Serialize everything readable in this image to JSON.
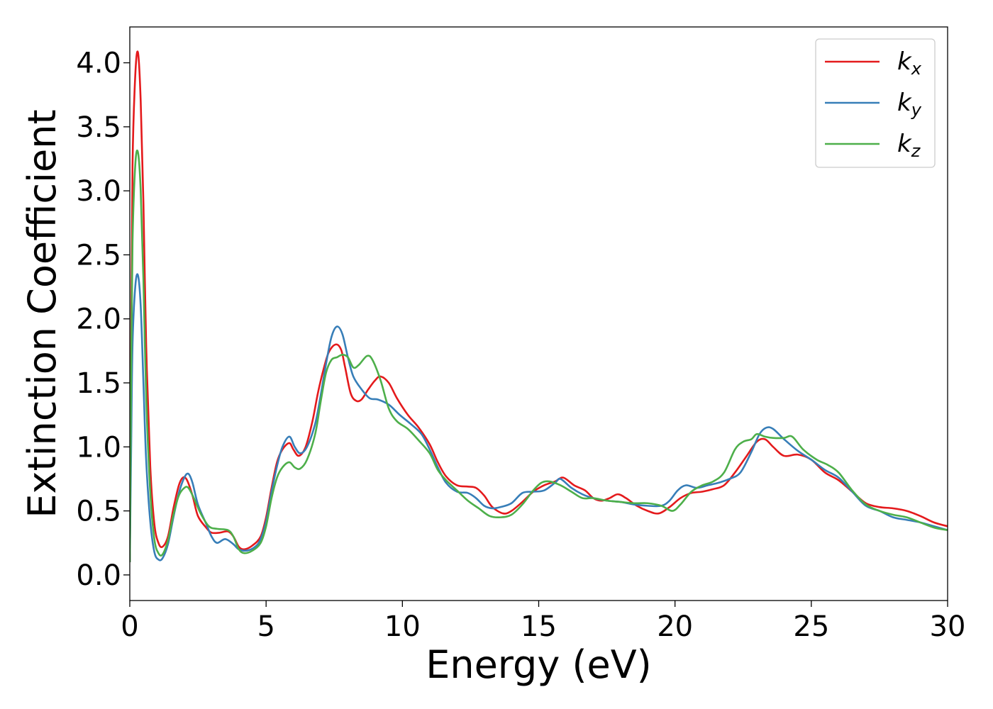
{
  "chart_data": {
    "type": "line",
    "xlabel": "Energy (eV)",
    "ylabel": "Extinction Coefficient",
    "xlim": [
      0,
      30
    ],
    "ylim": [
      -0.2,
      4.28
    ],
    "x_ticks": [
      0,
      5,
      10,
      15,
      20,
      25,
      30
    ],
    "x_tick_labels": [
      "0",
      "5",
      "10",
      "15",
      "20",
      "25",
      "30"
    ],
    "y_ticks": [
      0.0,
      0.5,
      1.0,
      1.5,
      2.0,
      2.5,
      3.0,
      3.5,
      4.0
    ],
    "y_tick_labels": [
      "0.0",
      "0.5",
      "1.0",
      "1.5",
      "2.0",
      "2.5",
      "3.0",
      "3.5",
      "4.0"
    ],
    "grid": false,
    "legend_position": "top-right",
    "series": [
      {
        "name": "k",
        "subscript": "x",
        "color": "#e41a1c",
        "points": [
          [
            0,
            0.1
          ],
          [
            0.05,
            1.8
          ],
          [
            0.1,
            3.2
          ],
          [
            0.2,
            3.9
          ],
          [
            0.3,
            4.08
          ],
          [
            0.4,
            3.7
          ],
          [
            0.5,
            2.9
          ],
          [
            0.6,
            1.8
          ],
          [
            0.75,
            0.85
          ],
          [
            0.9,
            0.4
          ],
          [
            1.05,
            0.25
          ],
          [
            1.2,
            0.22
          ],
          [
            1.4,
            0.3
          ],
          [
            1.6,
            0.52
          ],
          [
            1.8,
            0.7
          ],
          [
            1.95,
            0.76
          ],
          [
            2.1,
            0.74
          ],
          [
            2.3,
            0.62
          ],
          [
            2.5,
            0.46
          ],
          [
            2.8,
            0.37
          ],
          [
            3.0,
            0.33
          ],
          [
            3.3,
            0.33
          ],
          [
            3.6,
            0.34
          ],
          [
            3.8,
            0.3
          ],
          [
            4.0,
            0.22
          ],
          [
            4.2,
            0.2
          ],
          [
            4.5,
            0.23
          ],
          [
            4.8,
            0.3
          ],
          [
            5.0,
            0.45
          ],
          [
            5.2,
            0.68
          ],
          [
            5.4,
            0.88
          ],
          [
            5.6,
            0.98
          ],
          [
            5.85,
            1.03
          ],
          [
            6.0,
            0.98
          ],
          [
            6.2,
            0.93
          ],
          [
            6.45,
            1.0
          ],
          [
            6.7,
            1.2
          ],
          [
            6.9,
            1.42
          ],
          [
            7.1,
            1.6
          ],
          [
            7.3,
            1.74
          ],
          [
            7.55,
            1.8
          ],
          [
            7.75,
            1.76
          ],
          [
            7.9,
            1.62
          ],
          [
            8.1,
            1.42
          ],
          [
            8.3,
            1.36
          ],
          [
            8.5,
            1.37
          ],
          [
            8.75,
            1.45
          ],
          [
            9.0,
            1.52
          ],
          [
            9.2,
            1.55
          ],
          [
            9.5,
            1.5
          ],
          [
            9.8,
            1.38
          ],
          [
            10.2,
            1.25
          ],
          [
            10.6,
            1.15
          ],
          [
            11.0,
            1.02
          ],
          [
            11.3,
            0.88
          ],
          [
            11.6,
            0.77
          ],
          [
            12.0,
            0.7
          ],
          [
            12.4,
            0.69
          ],
          [
            12.7,
            0.68
          ],
          [
            13.0,
            0.62
          ],
          [
            13.3,
            0.53
          ],
          [
            13.7,
            0.48
          ],
          [
            14.0,
            0.5
          ],
          [
            14.4,
            0.57
          ],
          [
            14.8,
            0.65
          ],
          [
            15.2,
            0.7
          ],
          [
            15.6,
            0.73
          ],
          [
            15.9,
            0.76
          ],
          [
            16.3,
            0.7
          ],
          [
            16.7,
            0.66
          ],
          [
            17.0,
            0.6
          ],
          [
            17.3,
            0.58
          ],
          [
            17.6,
            0.6
          ],
          [
            17.9,
            0.63
          ],
          [
            18.2,
            0.6
          ],
          [
            18.6,
            0.54
          ],
          [
            19.0,
            0.5
          ],
          [
            19.4,
            0.48
          ],
          [
            19.8,
            0.53
          ],
          [
            20.2,
            0.6
          ],
          [
            20.6,
            0.64
          ],
          [
            21.0,
            0.65
          ],
          [
            21.4,
            0.67
          ],
          [
            21.8,
            0.7
          ],
          [
            22.2,
            0.8
          ],
          [
            22.6,
            0.92
          ],
          [
            23.0,
            1.04
          ],
          [
            23.3,
            1.06
          ],
          [
            23.6,
            1.0
          ],
          [
            24.0,
            0.93
          ],
          [
            24.5,
            0.94
          ],
          [
            25.0,
            0.9
          ],
          [
            25.5,
            0.8
          ],
          [
            26.0,
            0.74
          ],
          [
            26.5,
            0.65
          ],
          [
            27.0,
            0.56
          ],
          [
            27.5,
            0.53
          ],
          [
            28.0,
            0.52
          ],
          [
            28.5,
            0.5
          ],
          [
            29.0,
            0.46
          ],
          [
            29.5,
            0.41
          ],
          [
            30.0,
            0.38
          ]
        ]
      },
      {
        "name": "k",
        "subscript": "y",
        "color": "#377eb8",
        "points": [
          [
            0,
            0.1
          ],
          [
            0.05,
            1.0
          ],
          [
            0.1,
            1.8
          ],
          [
            0.2,
            2.25
          ],
          [
            0.3,
            2.34
          ],
          [
            0.4,
            2.1
          ],
          [
            0.5,
            1.5
          ],
          [
            0.6,
            0.9
          ],
          [
            0.75,
            0.42
          ],
          [
            0.9,
            0.18
          ],
          [
            1.05,
            0.12
          ],
          [
            1.2,
            0.13
          ],
          [
            1.4,
            0.24
          ],
          [
            1.6,
            0.45
          ],
          [
            1.8,
            0.64
          ],
          [
            2.0,
            0.76
          ],
          [
            2.15,
            0.79
          ],
          [
            2.3,
            0.72
          ],
          [
            2.5,
            0.55
          ],
          [
            2.8,
            0.4
          ],
          [
            3.0,
            0.3
          ],
          [
            3.2,
            0.25
          ],
          [
            3.5,
            0.28
          ],
          [
            3.8,
            0.24
          ],
          [
            4.0,
            0.2
          ],
          [
            4.3,
            0.19
          ],
          [
            4.6,
            0.22
          ],
          [
            4.8,
            0.28
          ],
          [
            5.0,
            0.42
          ],
          [
            5.2,
            0.65
          ],
          [
            5.4,
            0.85
          ],
          [
            5.6,
            1.0
          ],
          [
            5.85,
            1.08
          ],
          [
            6.05,
            1.0
          ],
          [
            6.25,
            0.95
          ],
          [
            6.5,
            1.0
          ],
          [
            6.8,
            1.18
          ],
          [
            7.0,
            1.4
          ],
          [
            7.2,
            1.65
          ],
          [
            7.4,
            1.86
          ],
          [
            7.6,
            1.94
          ],
          [
            7.8,
            1.88
          ],
          [
            8.0,
            1.7
          ],
          [
            8.2,
            1.55
          ],
          [
            8.5,
            1.45
          ],
          [
            8.8,
            1.38
          ],
          [
            9.1,
            1.37
          ],
          [
            9.5,
            1.33
          ],
          [
            9.9,
            1.25
          ],
          [
            10.3,
            1.18
          ],
          [
            10.7,
            1.1
          ],
          [
            11.0,
            0.98
          ],
          [
            11.3,
            0.84
          ],
          [
            11.6,
            0.72
          ],
          [
            12.0,
            0.65
          ],
          [
            12.4,
            0.64
          ],
          [
            12.7,
            0.6
          ],
          [
            13.0,
            0.54
          ],
          [
            13.3,
            0.52
          ],
          [
            13.6,
            0.53
          ],
          [
            14.0,
            0.56
          ],
          [
            14.4,
            0.64
          ],
          [
            14.8,
            0.65
          ],
          [
            15.2,
            0.66
          ],
          [
            15.6,
            0.72
          ],
          [
            15.8,
            0.75
          ],
          [
            16.2,
            0.68
          ],
          [
            16.6,
            0.63
          ],
          [
            17.0,
            0.6
          ],
          [
            17.5,
            0.58
          ],
          [
            18.0,
            0.57
          ],
          [
            18.5,
            0.55
          ],
          [
            19.0,
            0.54
          ],
          [
            19.5,
            0.54
          ],
          [
            19.8,
            0.58
          ],
          [
            20.1,
            0.66
          ],
          [
            20.4,
            0.7
          ],
          [
            20.8,
            0.68
          ],
          [
            21.2,
            0.7
          ],
          [
            21.6,
            0.72
          ],
          [
            22.0,
            0.75
          ],
          [
            22.4,
            0.8
          ],
          [
            22.8,
            0.96
          ],
          [
            23.1,
            1.1
          ],
          [
            23.35,
            1.15
          ],
          [
            23.6,
            1.14
          ],
          [
            24.0,
            1.06
          ],
          [
            24.5,
            0.97
          ],
          [
            25.0,
            0.9
          ],
          [
            25.5,
            0.82
          ],
          [
            26.0,
            0.76
          ],
          [
            26.5,
            0.65
          ],
          [
            27.0,
            0.54
          ],
          [
            27.5,
            0.5
          ],
          [
            28.0,
            0.45
          ],
          [
            28.5,
            0.43
          ],
          [
            29.0,
            0.41
          ],
          [
            29.5,
            0.38
          ],
          [
            30.0,
            0.35
          ]
        ]
      },
      {
        "name": "k",
        "subscript": "z",
        "color": "#4daf4a",
        "points": [
          [
            0,
            0.1
          ],
          [
            0.05,
            1.6
          ],
          [
            0.1,
            2.6
          ],
          [
            0.2,
            3.2
          ],
          [
            0.3,
            3.3
          ],
          [
            0.4,
            3.0
          ],
          [
            0.5,
            2.3
          ],
          [
            0.6,
            1.4
          ],
          [
            0.75,
            0.65
          ],
          [
            0.9,
            0.28
          ],
          [
            1.05,
            0.17
          ],
          [
            1.2,
            0.16
          ],
          [
            1.4,
            0.27
          ],
          [
            1.6,
            0.47
          ],
          [
            1.8,
            0.62
          ],
          [
            2.0,
            0.68
          ],
          [
            2.15,
            0.68
          ],
          [
            2.35,
            0.6
          ],
          [
            2.6,
            0.48
          ],
          [
            2.9,
            0.38
          ],
          [
            3.2,
            0.36
          ],
          [
            3.6,
            0.35
          ],
          [
            3.8,
            0.3
          ],
          [
            4.0,
            0.2
          ],
          [
            4.2,
            0.17
          ],
          [
            4.5,
            0.19
          ],
          [
            4.8,
            0.25
          ],
          [
            5.0,
            0.38
          ],
          [
            5.2,
            0.6
          ],
          [
            5.4,
            0.76
          ],
          [
            5.6,
            0.84
          ],
          [
            5.85,
            0.88
          ],
          [
            6.05,
            0.84
          ],
          [
            6.25,
            0.83
          ],
          [
            6.5,
            0.9
          ],
          [
            6.8,
            1.1
          ],
          [
            7.0,
            1.35
          ],
          [
            7.2,
            1.58
          ],
          [
            7.4,
            1.68
          ],
          [
            7.6,
            1.7
          ],
          [
            7.8,
            1.72
          ],
          [
            8.0,
            1.7
          ],
          [
            8.2,
            1.62
          ],
          [
            8.4,
            1.64
          ],
          [
            8.7,
            1.71
          ],
          [
            8.9,
            1.68
          ],
          [
            9.2,
            1.52
          ],
          [
            9.5,
            1.3
          ],
          [
            9.8,
            1.2
          ],
          [
            10.2,
            1.14
          ],
          [
            10.6,
            1.05
          ],
          [
            11.0,
            0.95
          ],
          [
            11.3,
            0.82
          ],
          [
            11.6,
            0.74
          ],
          [
            12.0,
            0.66
          ],
          [
            12.4,
            0.58
          ],
          [
            12.8,
            0.52
          ],
          [
            13.2,
            0.46
          ],
          [
            13.6,
            0.45
          ],
          [
            14.0,
            0.47
          ],
          [
            14.4,
            0.55
          ],
          [
            14.8,
            0.66
          ],
          [
            15.1,
            0.72
          ],
          [
            15.4,
            0.73
          ],
          [
            15.8,
            0.7
          ],
          [
            16.2,
            0.65
          ],
          [
            16.6,
            0.6
          ],
          [
            17.0,
            0.6
          ],
          [
            17.5,
            0.58
          ],
          [
            18.0,
            0.57
          ],
          [
            18.5,
            0.56
          ],
          [
            19.0,
            0.56
          ],
          [
            19.5,
            0.54
          ],
          [
            19.9,
            0.5
          ],
          [
            20.2,
            0.55
          ],
          [
            20.6,
            0.65
          ],
          [
            21.0,
            0.7
          ],
          [
            21.4,
            0.73
          ],
          [
            21.8,
            0.8
          ],
          [
            22.2,
            0.98
          ],
          [
            22.5,
            1.04
          ],
          [
            22.8,
            1.06
          ],
          [
            23.0,
            1.1
          ],
          [
            23.3,
            1.08
          ],
          [
            23.6,
            1.07
          ],
          [
            24.0,
            1.07
          ],
          [
            24.3,
            1.08
          ],
          [
            24.7,
            0.98
          ],
          [
            25.2,
            0.9
          ],
          [
            25.6,
            0.86
          ],
          [
            26.0,
            0.8
          ],
          [
            26.5,
            0.66
          ],
          [
            27.0,
            0.55
          ],
          [
            27.5,
            0.5
          ],
          [
            28.0,
            0.47
          ],
          [
            28.5,
            0.45
          ],
          [
            29.0,
            0.41
          ],
          [
            29.5,
            0.37
          ],
          [
            30.0,
            0.35
          ]
        ]
      }
    ]
  }
}
